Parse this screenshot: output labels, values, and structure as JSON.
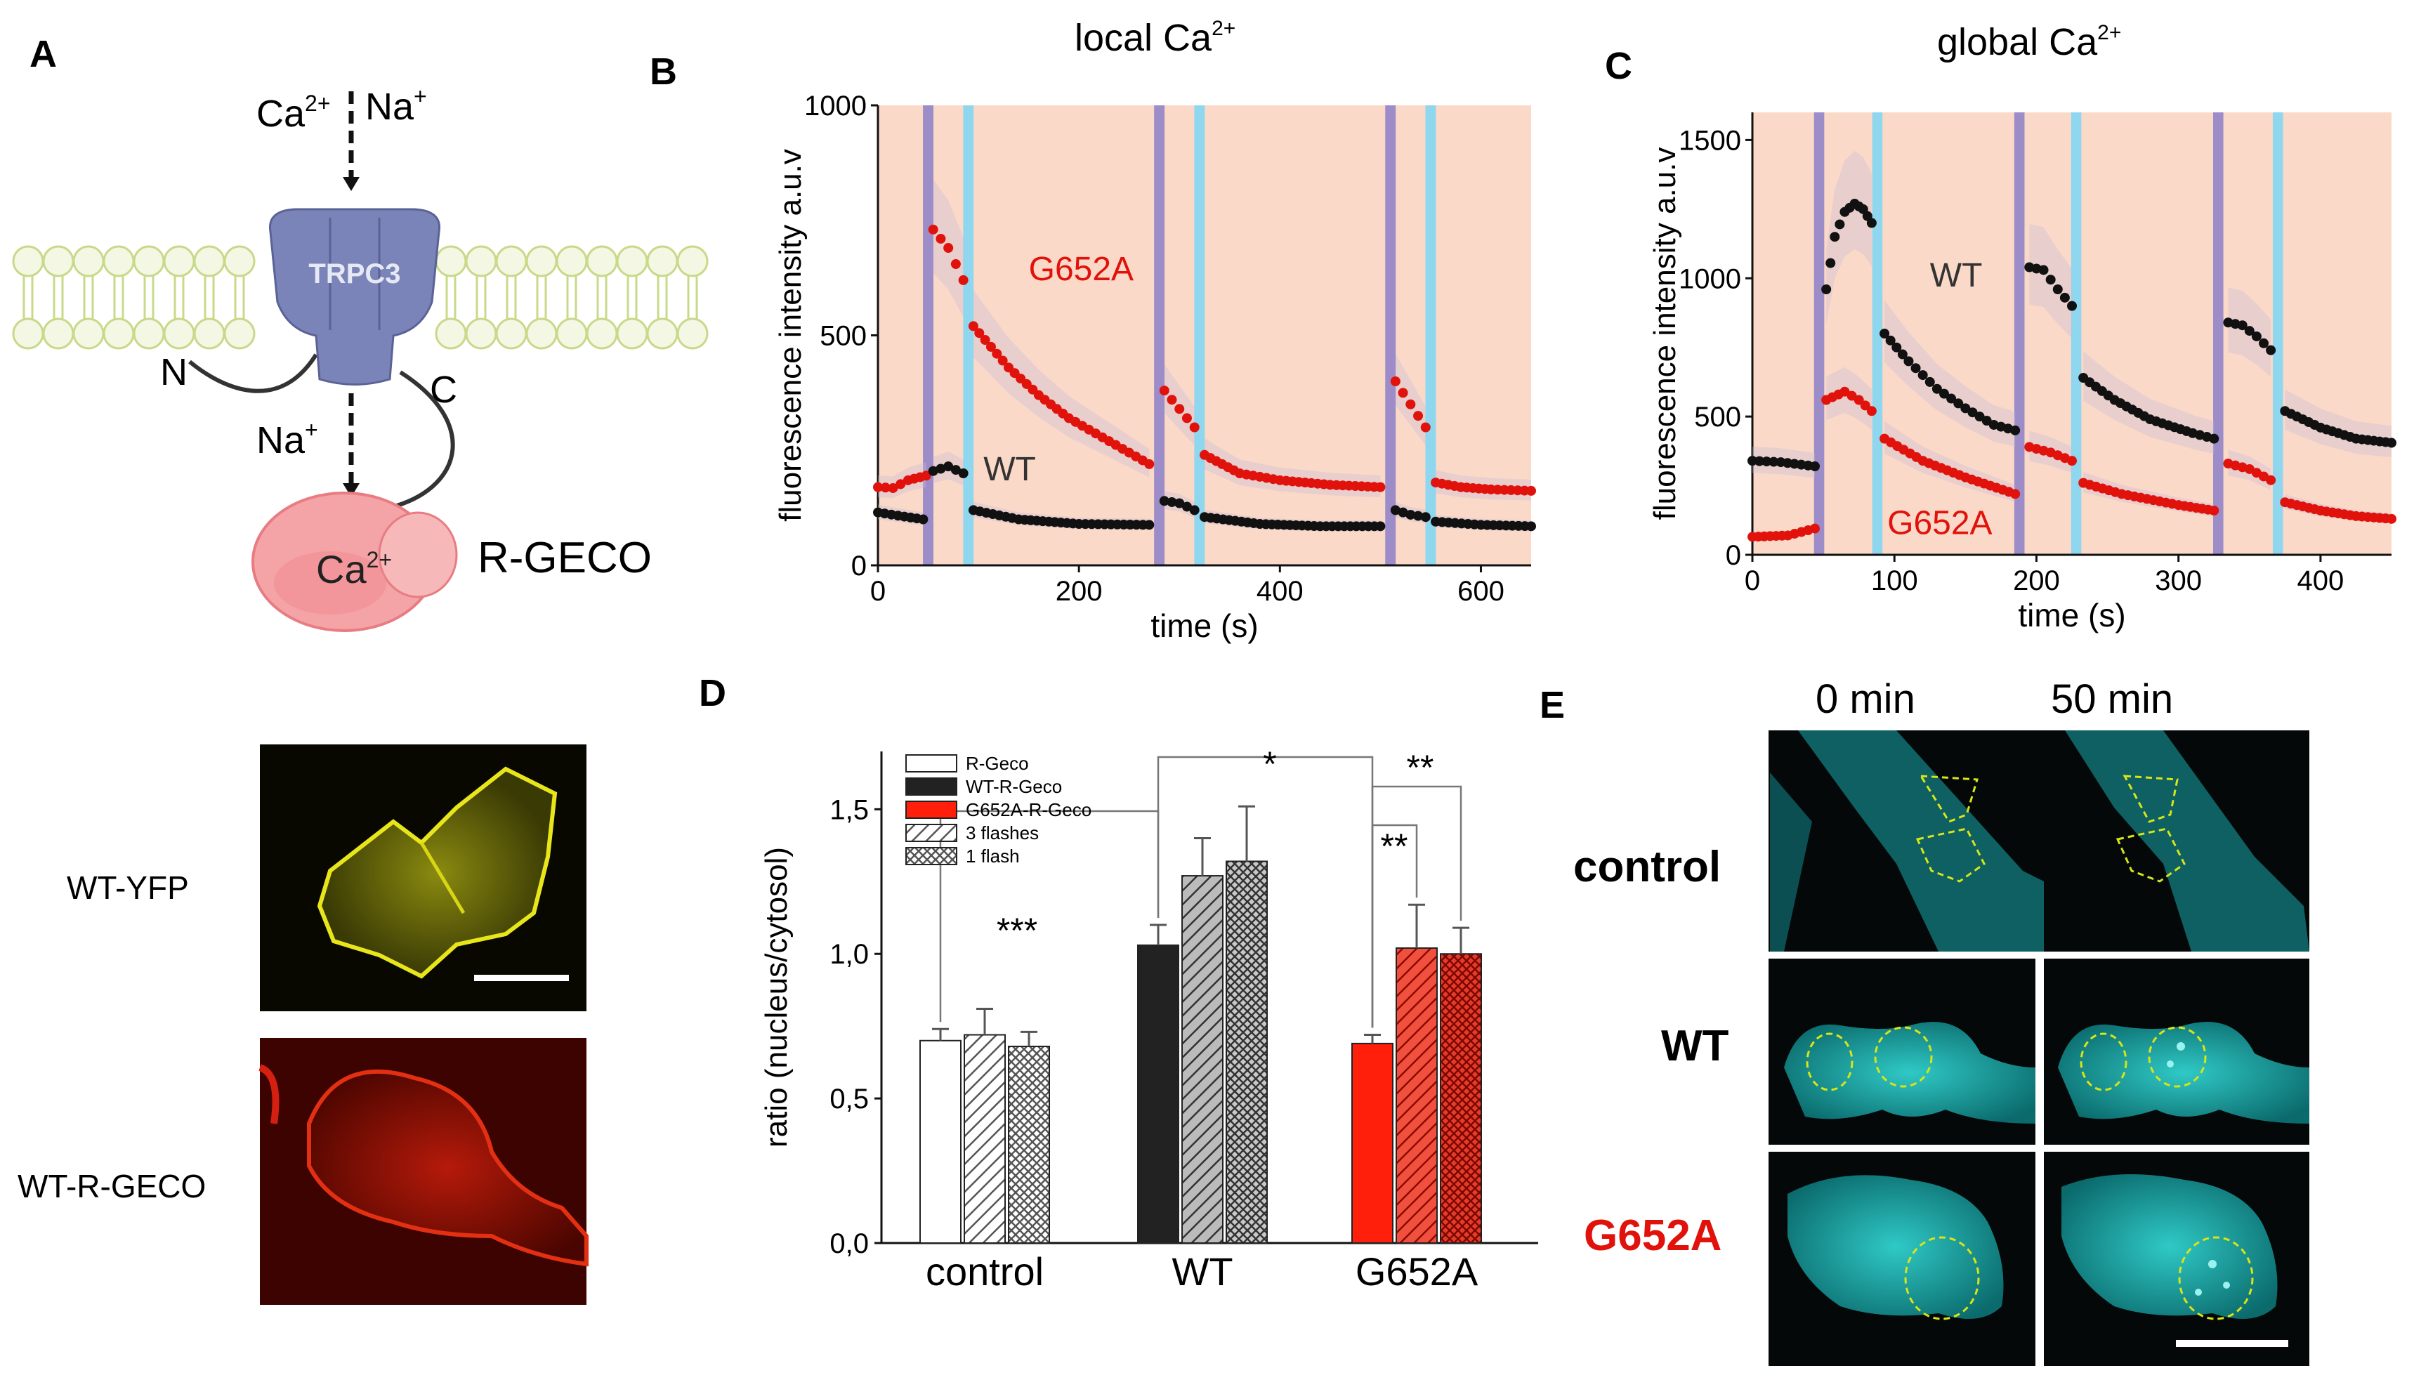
{
  "panelA": {
    "letter": "A",
    "ions_top": {
      "ca": "Ca",
      "ca_sup": "2+",
      "na": "Na",
      "na_sup": "+"
    },
    "channel": "TRPC3",
    "n_term": "N",
    "c_term": "C",
    "ion_inner": {
      "na": "Na",
      "na_sup": "+"
    },
    "sensor_ion": {
      "ca": "Ca",
      "ca_sup": "2+"
    },
    "sensor_name": "R-GECO",
    "image1_label": "WT-YFP",
    "image2_label": "WT-R-GECO"
  },
  "panelB": {
    "letter": "B",
    "title": "local Ca",
    "title_sup": "2+"
  },
  "panelC": {
    "letter": "C",
    "title": "global Ca",
    "title_sup": "2+"
  },
  "panelD": {
    "letter": "D"
  },
  "panelE": {
    "letter": "E",
    "cols": [
      "0 min",
      "50 min"
    ],
    "rows": [
      "control",
      "WT",
      "G652A"
    ]
  },
  "colors": {
    "wt": "#111111",
    "g652a": "#e0120b",
    "bg": "#fbd9c8",
    "violet": "#9c8cc8",
    "cyan": "#8ed7ee",
    "channel": "#7a84b8",
    "membrane": "#c9d98a",
    "sensor": "#f4a3a6",
    "cell_cyan": "#1fb8b8"
  },
  "chart_data": [
    {
      "id": "B",
      "type": "scatter",
      "title": "local Ca2+",
      "xlabel": "time (s)",
      "ylabel": "fluorescence intensity a.u.v",
      "xlim": [
        0,
        650
      ],
      "ylim": [
        0,
        1000
      ],
      "xticks": [
        0,
        200,
        400,
        600
      ],
      "yticks": [
        0,
        500,
        1000
      ],
      "violet_pulses": [
        50,
        280,
        510
      ],
      "cyan_pulses": [
        90,
        320,
        550
      ],
      "series": [
        {
          "name": "G652A",
          "label": "G652A",
          "label_pos": [
            150,
            620
          ],
          "segments": [
            [
              [
                0,
                170
              ],
              [
                15,
                168
              ],
              [
                30,
                185
              ],
              [
                48,
                195
              ]
            ],
            [
              [
                55,
                730
              ],
              [
                70,
                690
              ],
              [
                85,
                620
              ]
            ],
            [
              [
                95,
                520
              ],
              [
                130,
                430
              ],
              [
                160,
                370
              ],
              [
                190,
                320
              ],
              [
                230,
                270
              ],
              [
                270,
                220
              ]
            ],
            [
              [
                285,
                380
              ],
              [
                300,
                340
              ],
              [
                315,
                300
              ]
            ],
            [
              [
                325,
                240
              ],
              [
                360,
                200
              ],
              [
                400,
                185
              ],
              [
                450,
                175
              ],
              [
                500,
                170
              ]
            ],
            [
              [
                515,
                400
              ],
              [
                530,
                350
              ],
              [
                545,
                300
              ]
            ],
            [
              [
                555,
                180
              ],
              [
                580,
                170
              ],
              [
                610,
                165
              ],
              [
                650,
                162
              ]
            ]
          ]
        },
        {
          "name": "WT",
          "label": "WT",
          "label_pos": [
            105,
            185
          ],
          "segments": [
            [
              [
                0,
                115
              ],
              [
                20,
                108
              ],
              [
                45,
                100
              ]
            ],
            [
              [
                55,
                205
              ],
              [
                70,
                215
              ],
              [
                85,
                200
              ]
            ],
            [
              [
                95,
                120
              ],
              [
                140,
                100
              ],
              [
                200,
                90
              ],
              [
                270,
                88
              ]
            ],
            [
              [
                285,
                140
              ],
              [
                300,
                135
              ],
              [
                315,
                120
              ]
            ],
            [
              [
                325,
                105
              ],
              [
                380,
                90
              ],
              [
                440,
                85
              ],
              [
                500,
                85
              ]
            ],
            [
              [
                515,
                120
              ],
              [
                530,
                110
              ],
              [
                545,
                105
              ]
            ],
            [
              [
                555,
                95
              ],
              [
                600,
                88
              ],
              [
                650,
                85
              ]
            ]
          ]
        }
      ]
    },
    {
      "id": "C",
      "type": "scatter",
      "title": "global Ca2+",
      "xlabel": "time (s)",
      "ylabel": "fluorescence intensity a.u.v",
      "xlim": [
        0,
        450
      ],
      "ylim": [
        0,
        1600
      ],
      "xticks": [
        0,
        100,
        200,
        300,
        400
      ],
      "yticks": [
        0,
        500,
        1000,
        1500
      ],
      "violet_pulses": [
        47,
        188,
        328
      ],
      "cyan_pulses": [
        88,
        228,
        370
      ],
      "series": [
        {
          "name": "WT",
          "label": "WT",
          "label_pos": [
            125,
            970
          ],
          "segments": [
            [
              [
                0,
                340
              ],
              [
                20,
                335
              ],
              [
                44,
                320
              ]
            ],
            [
              [
                52,
                960
              ],
              [
                58,
                1150
              ],
              [
                65,
                1240
              ],
              [
                72,
                1270
              ],
              [
                78,
                1250
              ],
              [
                84,
                1200
              ]
            ],
            [
              [
                93,
                800
              ],
              [
                110,
                700
              ],
              [
                130,
                600
              ],
              [
                150,
                530
              ],
              [
                170,
                470
              ],
              [
                185,
                450
              ]
            ],
            [
              [
                195,
                1040
              ],
              [
                205,
                1030
              ],
              [
                215,
                960
              ],
              [
                225,
                900
              ]
            ],
            [
              [
                233,
                640
              ],
              [
                255,
                560
              ],
              [
                280,
                490
              ],
              [
                310,
                440
              ],
              [
                325,
                420
              ]
            ],
            [
              [
                335,
                840
              ],
              [
                345,
                830
              ],
              [
                355,
                790
              ],
              [
                365,
                740
              ]
            ],
            [
              [
                375,
                520
              ],
              [
                400,
                460
              ],
              [
                425,
                420
              ],
              [
                450,
                405
              ]
            ]
          ]
        },
        {
          "name": "G652A",
          "label": "G652A",
          "label_pos": [
            95,
            75
          ],
          "segments": [
            [
              [
                0,
                65
              ],
              [
                25,
                70
              ],
              [
                44,
                95
              ]
            ],
            [
              [
                52,
                560
              ],
              [
                65,
                590
              ],
              [
                75,
                560
              ],
              [
                84,
                520
              ]
            ],
            [
              [
                93,
                420
              ],
              [
                120,
                340
              ],
              [
                150,
                280
              ],
              [
                185,
                220
              ]
            ],
            [
              [
                195,
                390
              ],
              [
                210,
                370
              ],
              [
                225,
                340
              ]
            ],
            [
              [
                233,
                260
              ],
              [
                260,
                220
              ],
              [
                300,
                180
              ],
              [
                325,
                160
              ]
            ],
            [
              [
                335,
                330
              ],
              [
                350,
                310
              ],
              [
                365,
                270
              ]
            ],
            [
              [
                375,
                190
              ],
              [
                400,
                160
              ],
              [
                425,
                140
              ],
              [
                450,
                130
              ]
            ]
          ]
        }
      ]
    },
    {
      "id": "D",
      "type": "bar",
      "ylabel": "ratio (nucleus/cytosol)",
      "ylim": [
        0,
        1.7
      ],
      "yticks": [
        0.0,
        0.5,
        1.0,
        1.5
      ],
      "ytick_labels": [
        "0,0",
        "0,5",
        "1,0",
        "1,5"
      ],
      "categories": [
        "control",
        "WT",
        "G652A"
      ],
      "legend": [
        "R-Geco",
        "WT-R-Geco",
        "G652A-R-Geco",
        "3 flashes",
        "1 flash"
      ],
      "groups": [
        {
          "category": "control",
          "color": "white",
          "values": [
            0.7,
            0.72,
            0.68
          ],
          "errors": [
            0.04,
            0.09,
            0.05
          ],
          "patterns": [
            "solid",
            "hatch",
            "cross"
          ]
        },
        {
          "category": "WT",
          "color": "black",
          "values": [
            1.03,
            1.27,
            1.32
          ],
          "errors": [
            0.07,
            0.13,
            0.19
          ],
          "patterns": [
            "solid",
            "hatch",
            "cross"
          ]
        },
        {
          "category": "G652A",
          "color": "red",
          "values": [
            0.69,
            1.02,
            1.0
          ],
          "errors": [
            0.03,
            0.15,
            0.09
          ],
          "patterns": [
            "solid",
            "hatch",
            "cross"
          ]
        }
      ],
      "significance": [
        {
          "label": "***",
          "from": "control-0",
          "to": "WT-0"
        },
        {
          "label": "*",
          "from": "WT-0",
          "to": "G652A-0"
        },
        {
          "label": "**",
          "from": "G652A-0",
          "to": "G652A-1"
        },
        {
          "label": "**",
          "from": "G652A-0",
          "to": "G652A-2"
        }
      ]
    }
  ]
}
